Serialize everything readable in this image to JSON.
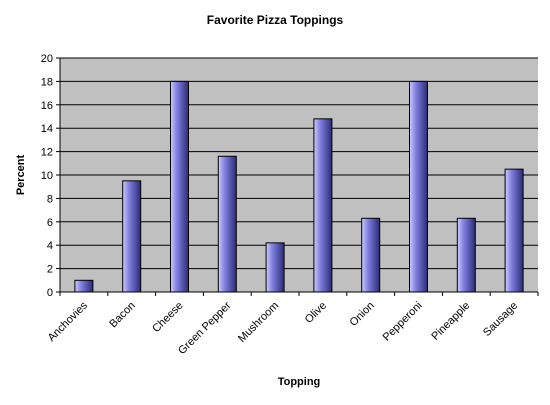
{
  "chart_data": {
    "type": "bar",
    "title": "Favorite Pizza Toppings",
    "xlabel": "Topping",
    "ylabel": "Percent",
    "categories": [
      "Anchovies",
      "Bacon",
      "Cheese",
      "Green Pepper",
      "Mushroom",
      "Olive",
      "Onion",
      "Pepperoni",
      "Pineapple",
      "Sausage"
    ],
    "values": [
      1.0,
      9.5,
      18.0,
      11.6,
      4.2,
      14.8,
      6.3,
      18.0,
      6.3,
      10.5
    ],
    "ylim": [
      0,
      20
    ],
    "yticks": [
      0,
      2,
      4,
      6,
      8,
      10,
      12,
      14,
      16,
      18,
      20
    ],
    "grid": true,
    "legend": "none",
    "colors": {
      "plot_background": "#c0c0c0",
      "bar_light": "#ccccff",
      "bar_mid": "#8080e0",
      "bar_dark": "#2b2b77",
      "gridline": "#000000",
      "axis": "#000000"
    }
  }
}
